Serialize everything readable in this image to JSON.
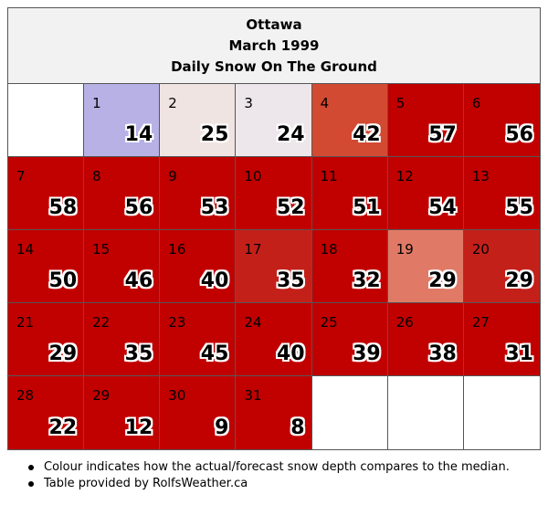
{
  "header": {
    "city": "Ottawa",
    "month": "March 1999",
    "subtitle": "Daily Snow On The Ground"
  },
  "calendar": {
    "leading_blanks": 1,
    "trailing_blanks": 3,
    "days": [
      {
        "day": "1",
        "value": "14",
        "color": "#b7b1e6"
      },
      {
        "day": "2",
        "value": "25",
        "color": "#f0e4e2"
      },
      {
        "day": "3",
        "value": "24",
        "color": "#ede6ea"
      },
      {
        "day": "4",
        "value": "42",
        "color": "#d34a32"
      },
      {
        "day": "5",
        "value": "57",
        "color": "#c10000"
      },
      {
        "day": "6",
        "value": "56",
        "color": "#c10000"
      },
      {
        "day": "7",
        "value": "58",
        "color": "#c10000"
      },
      {
        "day": "8",
        "value": "56",
        "color": "#c10000"
      },
      {
        "day": "9",
        "value": "53",
        "color": "#c10000"
      },
      {
        "day": "10",
        "value": "52",
        "color": "#c10000"
      },
      {
        "day": "11",
        "value": "51",
        "color": "#c10000"
      },
      {
        "day": "12",
        "value": "54",
        "color": "#c10000"
      },
      {
        "day": "13",
        "value": "55",
        "color": "#c10000"
      },
      {
        "day": "14",
        "value": "50",
        "color": "#c10000"
      },
      {
        "day": "15",
        "value": "46",
        "color": "#c10000"
      },
      {
        "day": "16",
        "value": "40",
        "color": "#c10000"
      },
      {
        "day": "17",
        "value": "35",
        "color": "#c4201a"
      },
      {
        "day": "18",
        "value": "32",
        "color": "#c10000"
      },
      {
        "day": "19",
        "value": "29",
        "color": "#e07a66"
      },
      {
        "day": "20",
        "value": "29",
        "color": "#c4201a"
      },
      {
        "day": "21",
        "value": "29",
        "color": "#c10000"
      },
      {
        "day": "22",
        "value": "35",
        "color": "#c10000"
      },
      {
        "day": "23",
        "value": "45",
        "color": "#c10000"
      },
      {
        "day": "24",
        "value": "40",
        "color": "#c10000"
      },
      {
        "day": "25",
        "value": "39",
        "color": "#c10000"
      },
      {
        "day": "26",
        "value": "38",
        "color": "#c10000"
      },
      {
        "day": "27",
        "value": "31",
        "color": "#c10000"
      },
      {
        "day": "28",
        "value": "22",
        "color": "#c10000"
      },
      {
        "day": "29",
        "value": "12",
        "color": "#c10000"
      },
      {
        "day": "30",
        "value": "9",
        "color": "#c10000"
      },
      {
        "day": "31",
        "value": "8",
        "color": "#c10000"
      }
    ]
  },
  "notes": [
    "Colour indicates how the actual/forecast snow depth compares to the median.",
    "Table provided by RolfsWeather.ca"
  ]
}
